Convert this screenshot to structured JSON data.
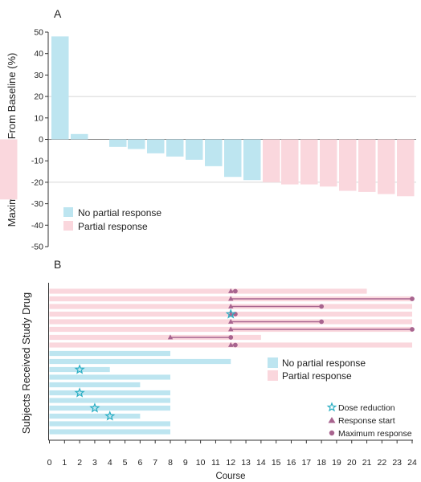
{
  "colors": {
    "no_partial": "#bde5f0",
    "partial": "#fad7dd",
    "marker_line": "#a8648f",
    "star": "#2aaec3",
    "axis": "#333333",
    "grid": "#c8c8c8"
  },
  "chart_data": [
    {
      "type": "bar",
      "panel_label": "A",
      "ylabel": "Maximum Change From Baseline (%)",
      "ylim": [
        -50,
        50
      ],
      "yticks": [
        50,
        40,
        30,
        20,
        10,
        0,
        -10,
        -20,
        -30,
        -40,
        -50
      ],
      "ytick_labels": [
        "50",
        "40",
        "30",
        "20",
        "10",
        "0",
        "-10",
        "-20",
        "-30",
        "-40",
        "-50"
      ],
      "grid": "horizontal at 20, 0, -20",
      "legend_position": "bottom-left",
      "series": [
        {
          "name": "No partial response",
          "values": [
            48,
            2.5,
            -3.5,
            -4.5,
            -6.5,
            -8,
            -9.5,
            -12.5,
            -17.5,
            -19
          ],
          "color": "#bde5f0"
        },
        {
          "name": "Partial response",
          "values": [
            -20,
            -21,
            -21,
            -22,
            -24,
            -24.5,
            -25.5,
            -26.5,
            -28
          ],
          "color": "#fad7dd"
        }
      ]
    },
    {
      "type": "swimmer",
      "panel_label": "B",
      "ylabel": "Subjects Received Study Drug",
      "xlabel": "Course",
      "xlim": [
        0,
        24
      ],
      "xticks": [
        0,
        1,
        2,
        3,
        4,
        5,
        6,
        7,
        8,
        9,
        10,
        11,
        12,
        13,
        14,
        15,
        16,
        17,
        18,
        19,
        20,
        21,
        22,
        23,
        24
      ],
      "xtick_labels": [
        "0",
        "1",
        "2",
        "3",
        "4",
        "5",
        "6",
        "7",
        "8",
        "9",
        "10",
        "11",
        "12",
        "13",
        "14",
        "15",
        "16",
        "17",
        "18",
        "19",
        "20",
        "21",
        "22",
        "23",
        "24"
      ],
      "legend_position": "right",
      "legend": {
        "no_partial": "No partial response",
        "partial": "Partial response",
        "dose_reduction": "Dose reduction",
        "response_start": "Response start",
        "max_response": "Maximum response"
      },
      "partial_subjects": [
        {
          "duration": 21,
          "response_start": 12,
          "max_response": 12.3
        },
        {
          "duration": 24,
          "response_start": 12,
          "max_response": 24
        },
        {
          "duration": 24,
          "response_start": 12,
          "max_response": 18
        },
        {
          "duration": 24,
          "response_start": 12,
          "max_response": 12.3,
          "dose_reduction": 12
        },
        {
          "duration": 24,
          "response_start": 12,
          "max_response": 18
        },
        {
          "duration": 24,
          "response_start": 12,
          "max_response": 24
        },
        {
          "duration": 14,
          "response_start": 8,
          "max_response": 12
        },
        {
          "duration": 24,
          "response_start": 12,
          "max_response": 12.3
        }
      ],
      "no_partial_subjects": [
        {
          "duration": 8
        },
        {
          "duration": 12
        },
        {
          "duration": 4,
          "dose_reduction": 2
        },
        {
          "duration": 8
        },
        {
          "duration": 6
        },
        {
          "duration": 8,
          "dose_reduction": 2
        },
        {
          "duration": 8
        },
        {
          "duration": 8,
          "dose_reduction": 3
        },
        {
          "duration": 6,
          "dose_reduction": 4
        },
        {
          "duration": 8
        },
        {
          "duration": 8
        }
      ]
    }
  ]
}
